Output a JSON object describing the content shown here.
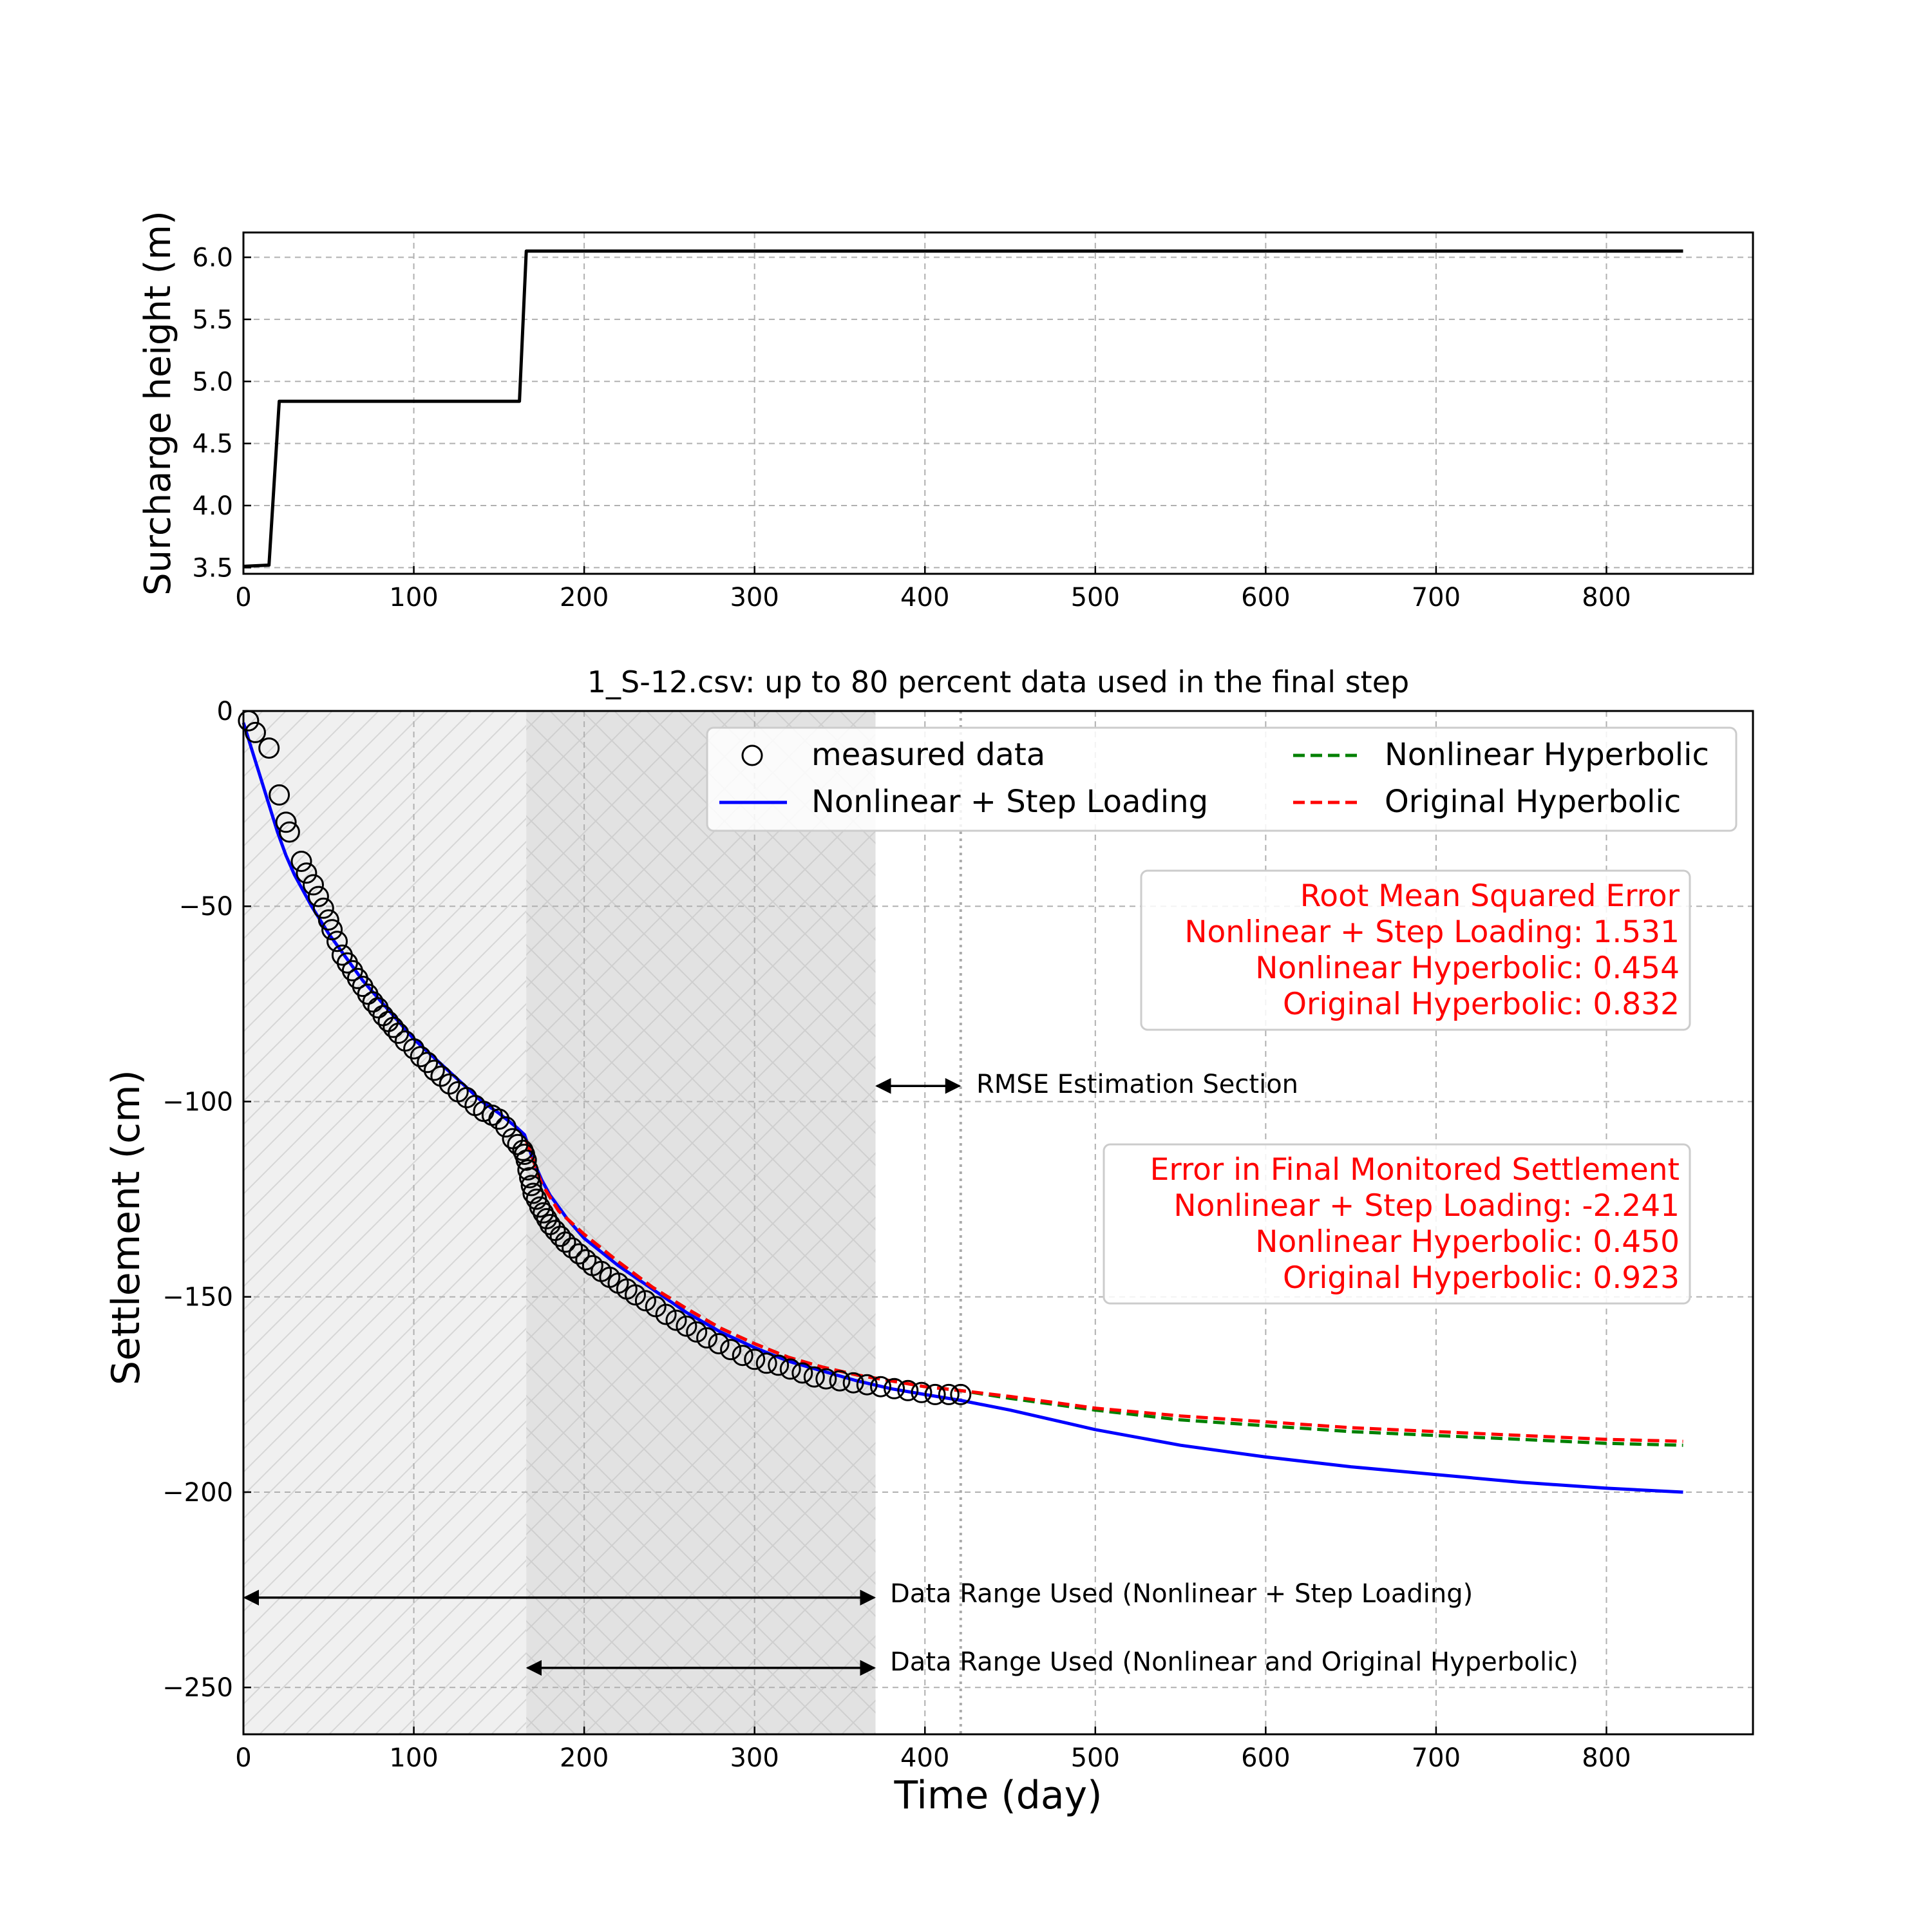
{
  "chart_data": [
    {
      "type": "line",
      "ylabel": "Surcharge height (m)",
      "xlim": [
        0,
        886
      ],
      "ylim": [
        3.45,
        6.2
      ],
      "x_ticks": [
        0,
        100,
        200,
        300,
        400,
        500,
        600,
        700,
        800
      ],
      "y_ticks": [
        3.5,
        4.0,
        4.5,
        5.0,
        5.5,
        6.0
      ],
      "grid": true,
      "series": [
        {
          "color": "#000000",
          "points": [
            [
              0,
              3.51
            ],
            [
              15,
              3.52
            ],
            [
              21,
              4.84
            ],
            [
              162,
              4.84
            ],
            [
              166,
              6.05
            ],
            [
              845,
              6.05
            ]
          ]
        }
      ]
    },
    {
      "type": "scatter+line",
      "title": "1_S-12.csv: up to 80 percent data used in the final step",
      "xlabel": "Time (day)",
      "ylabel": "Settlement (cm)",
      "xlim": [
        0,
        886
      ],
      "ylim": [
        -262,
        0
      ],
      "x_ticks": [
        0,
        100,
        200,
        300,
        400,
        500,
        600,
        700,
        800
      ],
      "y_ticks": [
        0,
        -50,
        -100,
        -150,
        -200,
        -250
      ],
      "grid": true,
      "legend_position": "top-right",
      "legend": [
        {
          "label": "measured data",
          "style": "marker"
        },
        {
          "label": "Nonlinear Hyperbolic",
          "style": "dashed",
          "color": "#008000"
        },
        {
          "label": "Nonlinear + Step Loading",
          "style": "solid",
          "color": "#0000ff"
        },
        {
          "label": "Original Hyperbolic",
          "style": "dashed",
          "color": "#ff0000"
        }
      ],
      "shaded_regions": [
        {
          "x": [
            0,
            166
          ],
          "fill": "#f0f0f0",
          "hatch": "diagonal"
        },
        {
          "x": [
            166,
            371
          ],
          "fill": "#e2e2e2",
          "hatch": "cross"
        }
      ],
      "vertical_line": {
        "x": 421
      },
      "measured": {
        "x": [
          3,
          7,
          15,
          21,
          25,
          27,
          34,
          37,
          41,
          44,
          47,
          50,
          52,
          55,
          58,
          61,
          64,
          67,
          70,
          73,
          76,
          79,
          82,
          85,
          88,
          91,
          95,
          100,
          104,
          108,
          112,
          116,
          121,
          126,
          131,
          136,
          141,
          146,
          150,
          154,
          158,
          161,
          164,
          165,
          166,
          167,
          168,
          169,
          170,
          172,
          174,
          176,
          178,
          180,
          183,
          186,
          189,
          193,
          197,
          201,
          205,
          210,
          215,
          220,
          225,
          230,
          236,
          242,
          248,
          254,
          260,
          266,
          272,
          279,
          286,
          293,
          300,
          307,
          314,
          321,
          328,
          335,
          342,
          350,
          358,
          366,
          374,
          382,
          390,
          398,
          406,
          414,
          421
        ],
        "y": [
          -2.5,
          -5.5,
          -9.5,
          -21.5,
          -28.5,
          -31,
          -38.5,
          -41.5,
          -44.5,
          -47.5,
          -50.5,
          -53.5,
          -56,
          -59,
          -62.5,
          -64.5,
          -66.5,
          -68.5,
          -70.5,
          -72.5,
          -74.5,
          -76,
          -78,
          -79.5,
          -81,
          -82.5,
          -84.5,
          -86.5,
          -88.5,
          -90,
          -92,
          -93.5,
          -95.5,
          -97.5,
          -99,
          -101,
          -102.5,
          -103.5,
          -104.5,
          -106.5,
          -109.5,
          -111,
          -112.5,
          -113.5,
          -115,
          -117.5,
          -119.5,
          -121.5,
          -123.5,
          -125,
          -127,
          -128.5,
          -130,
          -131.5,
          -133,
          -134.5,
          -136,
          -137.5,
          -139,
          -140.5,
          -142,
          -143.5,
          -145,
          -146.5,
          -148,
          -149.5,
          -151,
          -152.5,
          -154.5,
          -156,
          -157.5,
          -159,
          -160.5,
          -162,
          -163.5,
          -165,
          -166,
          -167,
          -167.5,
          -168.5,
          -169.5,
          -170.5,
          -171,
          -171.5,
          -172,
          -172.5,
          -173,
          -173.5,
          -174,
          -174.5,
          -175,
          -175,
          -175
        ]
      },
      "series": [
        {
          "name": "Nonlinear + Step Loading",
          "color": "#0000ff",
          "style": "solid",
          "points": [
            [
              0,
              -3
            ],
            [
              5,
              -10
            ],
            [
              10,
              -17
            ],
            [
              15,
              -24
            ],
            [
              20,
              -31
            ],
            [
              25,
              -37
            ],
            [
              30,
              -42
            ],
            [
              40,
              -50
            ],
            [
              50,
              -57
            ],
            [
              60,
              -63
            ],
            [
              70,
              -69
            ],
            [
              80,
              -74
            ],
            [
              90,
              -79
            ],
            [
              100,
              -84
            ],
            [
              110,
              -88
            ],
            [
              120,
              -92
            ],
            [
              130,
              -96
            ],
            [
              140,
              -100
            ],
            [
              150,
              -103
            ],
            [
              160,
              -106.5
            ],
            [
              165,
              -108.5
            ],
            [
              170,
              -115
            ],
            [
              175,
              -120
            ],
            [
              180,
              -124
            ],
            [
              190,
              -130
            ],
            [
              200,
              -135
            ],
            [
              220,
              -142
            ],
            [
              240,
              -148
            ],
            [
              260,
              -154
            ],
            [
              280,
              -159
            ],
            [
              300,
              -163
            ],
            [
              320,
              -166.5
            ],
            [
              340,
              -169
            ],
            [
              360,
              -171.5
            ],
            [
              380,
              -173.5
            ],
            [
              400,
              -175
            ],
            [
              421,
              -176.5
            ],
            [
              450,
              -179
            ],
            [
              500,
              -184
            ],
            [
              550,
              -188
            ],
            [
              600,
              -191
            ],
            [
              650,
              -193.5
            ],
            [
              700,
              -195.5
            ],
            [
              750,
              -197.5
            ],
            [
              800,
              -199
            ],
            [
              845,
              -200
            ]
          ]
        },
        {
          "name": "Nonlinear Hyperbolic",
          "color": "#008000",
          "style": "dashed",
          "points": [
            [
              166,
              -110
            ],
            [
              175,
              -121
            ],
            [
              185,
              -128
            ],
            [
              200,
              -134
            ],
            [
              220,
              -141
            ],
            [
              240,
              -147.5
            ],
            [
              260,
              -153
            ],
            [
              280,
              -158
            ],
            [
              300,
              -162
            ],
            [
              320,
              -165.5
            ],
            [
              340,
              -168
            ],
            [
              360,
              -170
            ],
            [
              380,
              -171.5
            ],
            [
              400,
              -173
            ],
            [
              421,
              -174
            ],
            [
              450,
              -176
            ],
            [
              500,
              -179
            ],
            [
              550,
              -181.5
            ],
            [
              600,
              -183
            ],
            [
              650,
              -184.5
            ],
            [
              700,
              -185.5
            ],
            [
              750,
              -186.5
            ],
            [
              800,
              -187.5
            ],
            [
              845,
              -188
            ]
          ]
        },
        {
          "name": "Original Hyperbolic",
          "color": "#ff0000",
          "style": "dashed",
          "points": [
            [
              166,
              -110
            ],
            [
              175,
              -121
            ],
            [
              185,
              -128
            ],
            [
              200,
              -134
            ],
            [
              220,
              -141
            ],
            [
              240,
              -147.5
            ],
            [
              260,
              -153
            ],
            [
              280,
              -158
            ],
            [
              300,
              -162
            ],
            [
              320,
              -165.5
            ],
            [
              340,
              -168
            ],
            [
              360,
              -170
            ],
            [
              380,
              -171.5
            ],
            [
              400,
              -173
            ],
            [
              421,
              -174
            ],
            [
              450,
              -175.5
            ],
            [
              500,
              -178.5
            ],
            [
              550,
              -180.5
            ],
            [
              600,
              -182
            ],
            [
              650,
              -183.5
            ],
            [
              700,
              -184.5
            ],
            [
              750,
              -185.5
            ],
            [
              800,
              -186.5
            ],
            [
              845,
              -187
            ]
          ]
        }
      ],
      "annotations": {
        "rmse_box": [
          "Root Mean Squared Error",
          "Nonlinear + Step Loading: 1.531",
          "Nonlinear Hyperbolic: 0.454",
          "Original Hyperbolic: 0.832"
        ],
        "error_box": [
          "Error in Final Monitored Settlement",
          "Nonlinear + Step Loading: -2.241",
          "Nonlinear Hyperbolic: 0.450",
          "Original Hyperbolic: 0.923"
        ],
        "rmse_section": {
          "label": "RMSE Estimation Section",
          "x": [
            371,
            421
          ],
          "y": -96
        },
        "range_step": {
          "label": "Data Range Used (Nonlinear + Step Loading)",
          "x": [
            0,
            371
          ],
          "y": -227
        },
        "range_hyper": {
          "label": "Data Range Used (Nonlinear and Original Hyperbolic)",
          "x": [
            166,
            371
          ],
          "y": -245
        }
      },
      "annotation_color": "#ff0000"
    }
  ]
}
